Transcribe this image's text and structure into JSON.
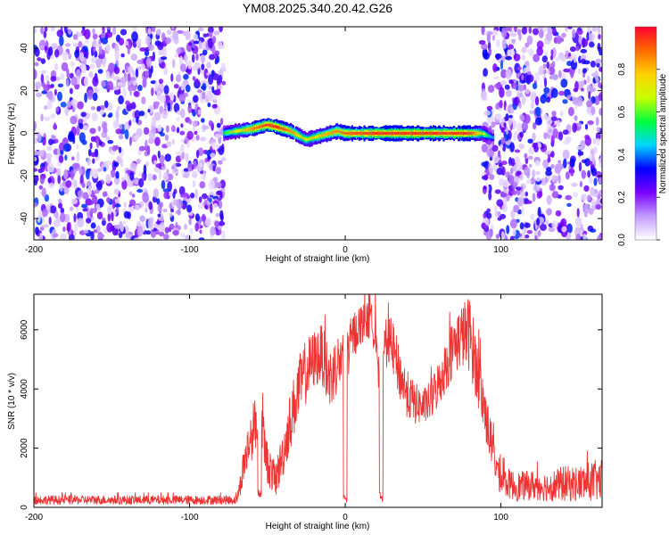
{
  "title": "YM08.2025.340.20.42.G26",
  "chart_data": [
    {
      "type": "heatmap",
      "xlabel": "Height of straight line (km)",
      "ylabel": "Frequency (Hz)",
      "xlim": [
        -200,
        165
      ],
      "ylim": [
        -50,
        50
      ],
      "x_ticks": [
        -200,
        -100,
        0,
        100
      ],
      "y_ticks": [
        -40,
        -20,
        0,
        20,
        40
      ],
      "grid": false,
      "colorbar": {
        "label": "Normalized spectral amplitude",
        "range": [
          0,
          1
        ],
        "ticks": [
          "0.0",
          "0.2",
          "0.4",
          "0.6",
          "0.8"
        ],
        "colors": [
          "#ffffff",
          "#c39bff",
          "#7a00ff",
          "#0000ff",
          "#00d6ff",
          "#00ff3c",
          "#c8ff00",
          "#ffd000",
          "#ff6a00",
          "#ff0030"
        ]
      },
      "noise_regions_km": [
        [
          -200,
          -78
        ],
        [
          88,
          165
        ]
      ],
      "signal_track": {
        "x": [
          -78,
          -70,
          -60,
          -50,
          -44,
          -35,
          -25,
          -15,
          -5,
          0,
          20,
          40,
          60,
          80,
          88,
          95
        ],
        "y": [
          0,
          1,
          2,
          4,
          3,
          1,
          -3,
          -1,
          1,
          0,
          0,
          0,
          0,
          0,
          0,
          -2
        ],
        "peak_amplitude": [
          0.55,
          0.7,
          0.85,
          0.95,
          0.95,
          0.85,
          0.7,
          0.8,
          0.85,
          0.9,
          0.95,
          0.95,
          0.95,
          0.95,
          0.7,
          0.4
        ]
      }
    },
    {
      "type": "line",
      "xlabel": "Height of straight line (km)",
      "ylabel": "SNR (10 * v/v)",
      "xlim": [
        -200,
        165
      ],
      "ylim": [
        0,
        7200
      ],
      "x_ticks": [
        -200,
        -100,
        0,
        100
      ],
      "y_ticks": [
        0,
        2000,
        4000,
        6000
      ],
      "grid": false,
      "series": [
        {
          "color": "#ee3333",
          "x": [
            -200,
            -180,
            -160,
            -140,
            -120,
            -100,
            -80,
            -70,
            -68,
            -65,
            -60,
            -55,
            -50,
            -45,
            -40,
            -35,
            -30,
            -25,
            -20,
            -15,
            -10,
            -5,
            0,
            5,
            10,
            15,
            20,
            23,
            25,
            30,
            35,
            40,
            45,
            50,
            55,
            60,
            65,
            70,
            75,
            80,
            85,
            90,
            95,
            100,
            110,
            120,
            130,
            140,
            150,
            160,
            165
          ],
          "values": [
            250,
            250,
            250,
            250,
            250,
            250,
            250,
            250,
            600,
            1500,
            2500,
            3200,
            1500,
            900,
            1800,
            3000,
            4000,
            4600,
            5000,
            5200,
            4300,
            4900,
            5000,
            5800,
            6200,
            6300,
            6000,
            2500,
            5600,
            5500,
            4500,
            3800,
            3500,
            3400,
            3600,
            4200,
            4800,
            5500,
            5800,
            5900,
            4500,
            3200,
            1800,
            900,
            700,
            750,
            700,
            800,
            800,
            900,
            900
          ],
          "noise_amplitude": [
            150,
            150,
            150,
            150,
            150,
            150,
            150,
            150,
            300,
            700,
            900,
            900,
            700,
            600,
            800,
            1000,
            1100,
            1100,
            1000,
            1000,
            1100,
            1000,
            900,
            800,
            700,
            600,
            800,
            1200,
            800,
            900,
            900,
            800,
            700,
            600,
            700,
            800,
            900,
            1000,
            1100,
            1300,
            1100,
            900,
            700,
            500,
            500,
            500,
            500,
            600,
            600,
            700,
            700
          ],
          "dips": [
            [
              -55,
              350
            ],
            [
              0,
              150
            ],
            [
              23,
              200
            ]
          ]
        }
      ]
    }
  ]
}
